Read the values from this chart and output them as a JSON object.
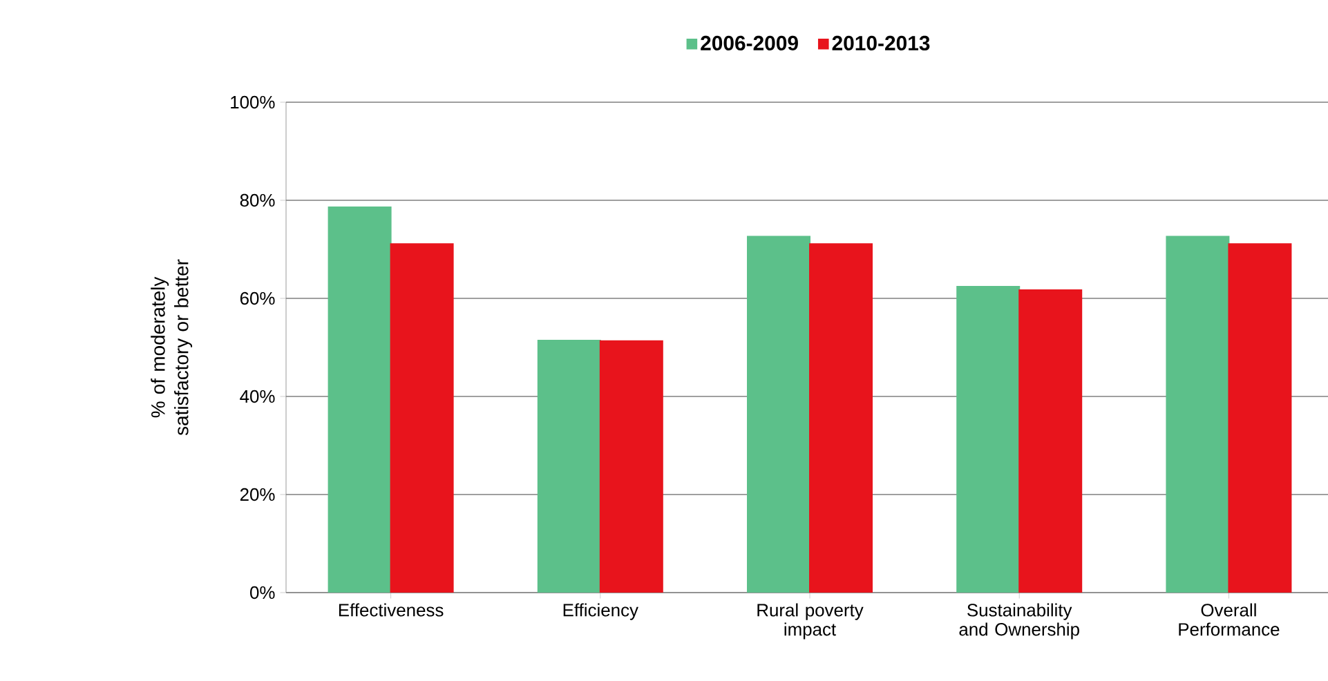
{
  "chart_data": {
    "type": "bar",
    "categories": [
      "Effectiveness",
      "Efficiency",
      "Rural poverty impact",
      "Sustainability and Ownership",
      "Overall Performance"
    ],
    "series": [
      {
        "name": "2006-2009",
        "color": "#5cc08a",
        "values": [
          78.6,
          51.4,
          72.6,
          62.4,
          72.6
        ]
      },
      {
        "name": "2010-2013",
        "color": "#e8141c",
        "values": [
          71.1,
          51.3,
          71.1,
          61.7,
          71.1
        ]
      }
    ],
    "ylabel": "% of moderately satisfactory or better",
    "ylim": [
      0,
      100
    ],
    "yticks": [
      {
        "value": 0,
        "label": "0%"
      },
      {
        "value": 20,
        "label": "20%"
      },
      {
        "value": 40,
        "label": "40%"
      },
      {
        "value": 60,
        "label": "60%"
      },
      {
        "value": 80,
        "label": "80%"
      },
      {
        "value": 100,
        "label": "100%"
      }
    ],
    "grid": "y",
    "legend": "top"
  }
}
